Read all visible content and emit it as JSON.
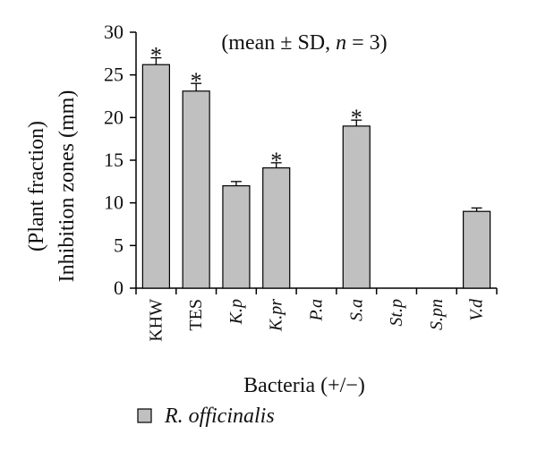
{
  "chart_data": {
    "type": "bar",
    "title": "",
    "annotation": {
      "prefix": "(mean ± SD, ",
      "n_symbol": "n",
      "suffix": " = 3)"
    },
    "ylabel_lines": [
      "(Plant fraction)",
      "Inhibition zones (mm)"
    ],
    "xlabel": "Bacteria (+/−)",
    "ylim": [
      0,
      30
    ],
    "yticks": [
      0,
      5,
      10,
      15,
      20,
      25,
      30
    ],
    "categories": [
      "KHW",
      "TES",
      "K.p",
      "K.pr",
      "P.a",
      "S.a",
      "St.p",
      "S.pn",
      "V.d"
    ],
    "category_italic": [
      false,
      false,
      true,
      true,
      true,
      true,
      true,
      true,
      true
    ],
    "series": [
      {
        "name": "R. officinalis",
        "values": [
          26.2,
          23.1,
          12.0,
          14.1,
          0,
          19.0,
          0,
          0,
          9.0
        ],
        "errors": [
          0.8,
          0.9,
          0.5,
          0.6,
          0,
          0.7,
          0,
          0,
          0.4
        ],
        "significance": [
          "*",
          "*",
          "",
          "*",
          "",
          "*",
          "",
          "",
          ""
        ]
      }
    ],
    "legend_position": "bottom-left",
    "grid": false,
    "colors": {
      "bar_fill": "#c0c0c0",
      "bar_stroke": "#000000",
      "axis": "#000000"
    }
  }
}
